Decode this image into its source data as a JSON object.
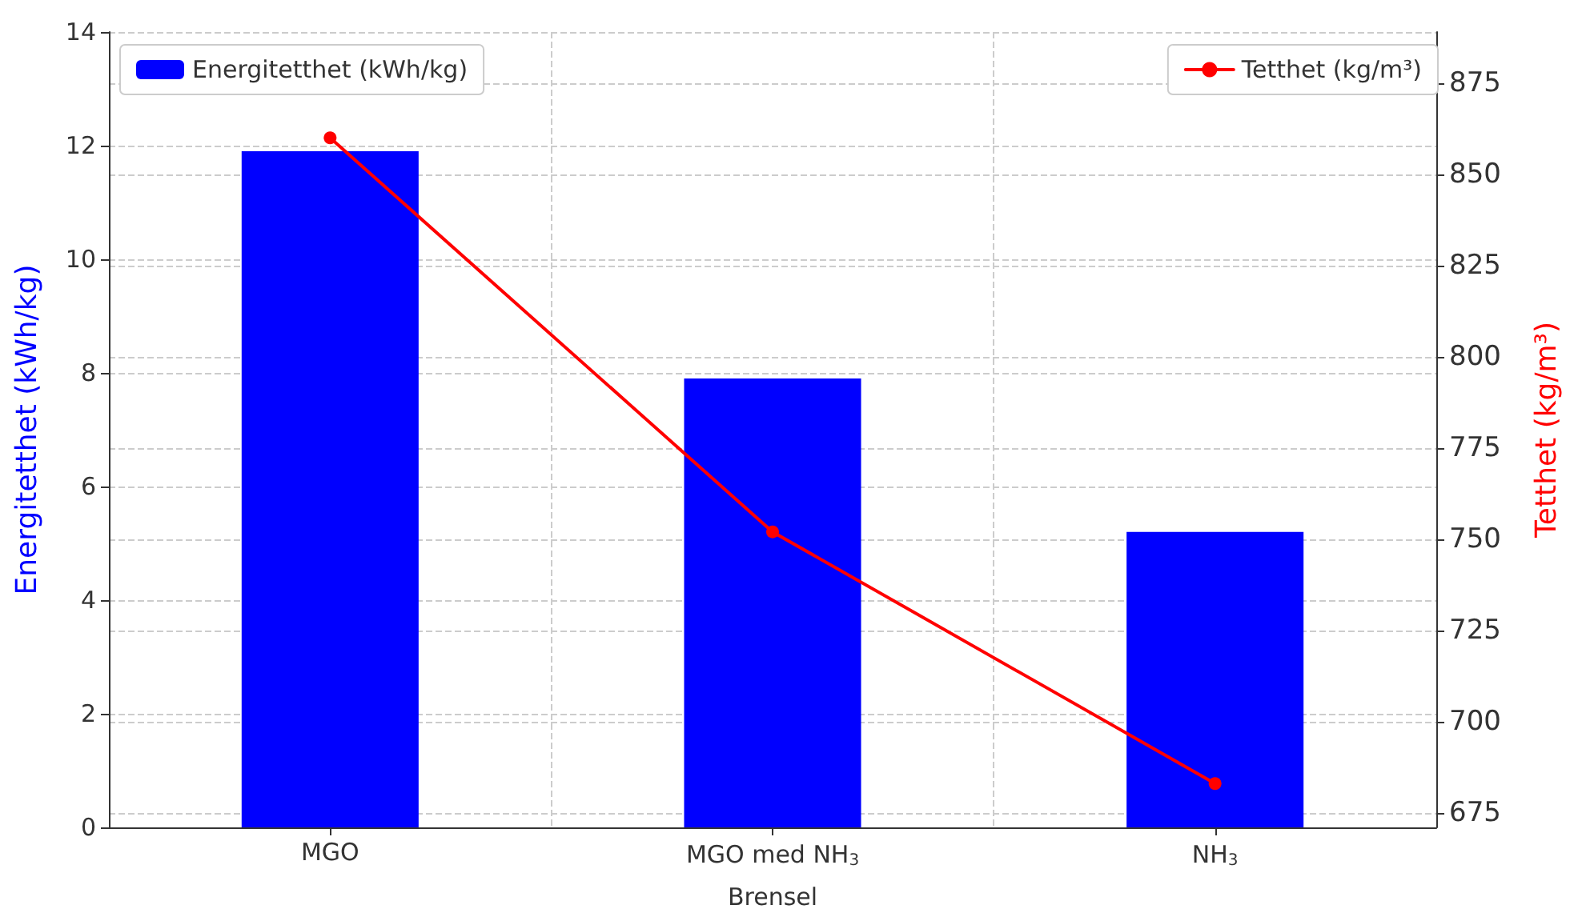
{
  "chart_data": {
    "type": "bar",
    "xlabel": "Brensel",
    "ylabel": "Energitetthet (kWh/kg)",
    "y2label": "Tetthet (kg/m³)",
    "categories": [
      "MGO",
      "MGO med NH$_{3}$",
      "NH$_{3}$"
    ],
    "series": [
      {
        "name": "Energitetthet (kWh/kg)",
        "color": "#0000ff",
        "values": [
          11.9,
          7.9,
          5.2
        ]
      },
      {
        "name": "Tetthet (kg/m³)",
        "type": "line",
        "axis": "y2",
        "color": "#ff0000",
        "values": [
          860,
          752,
          683
        ],
        "marker": "circle",
        "line_style": "solid"
      }
    ],
    "ylim": [
      0,
      14
    ],
    "yticks": [
      0,
      2,
      4,
      6,
      8,
      10,
      12,
      14
    ],
    "y2lim": [
      671,
      889
    ],
    "y2ticks": [
      675,
      700,
      725,
      750,
      775,
      800,
      825,
      850,
      875
    ],
    "grid": true,
    "legend": "top"
  }
}
